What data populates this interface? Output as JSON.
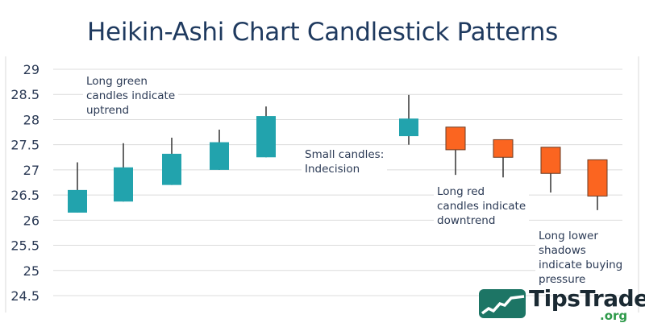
{
  "chart_data": {
    "type": "candlestick",
    "title": "Heikin-Ashi Chart Candlestick Patterns",
    "xlabel": "",
    "ylabel": "",
    "ylim": [
      24.5,
      29
    ],
    "yticks": [
      "29",
      "28.5",
      "28",
      "27.5",
      "27",
      "26.5",
      "26",
      "25.5",
      "25",
      "24.5"
    ],
    "grid": true,
    "candles": [
      {
        "open": 26.15,
        "close": 26.6,
        "high": 27.15,
        "low": 26.15,
        "color": "green"
      },
      {
        "open": 26.37,
        "close": 27.05,
        "high": 27.53,
        "low": 26.37,
        "color": "green"
      },
      {
        "open": 26.7,
        "close": 27.32,
        "high": 27.64,
        "low": 26.7,
        "color": "green"
      },
      {
        "open": 27.0,
        "close": 27.55,
        "high": 27.8,
        "low": 27.0,
        "color": "green"
      },
      {
        "open": 27.25,
        "close": 28.07,
        "high": 28.26,
        "low": 27.25,
        "color": "green"
      },
      {
        "open": 27.67,
        "close": 28.02,
        "high": 28.49,
        "low": 27.5,
        "color": "green"
      },
      {
        "open": 27.85,
        "close": 27.4,
        "high": 27.85,
        "low": 26.9,
        "color": "red"
      },
      {
        "open": 27.6,
        "close": 27.25,
        "high": 27.6,
        "low": 26.85,
        "color": "red"
      },
      {
        "open": 27.45,
        "close": 26.93,
        "high": 27.45,
        "low": 26.55,
        "color": "red"
      },
      {
        "open": 27.2,
        "close": 26.48,
        "high": 27.2,
        "low": 26.2,
        "color": "red"
      }
    ],
    "annotations": [
      "Long green candles indicate uptrend",
      "Small candles: Indecision",
      "Long red candles indicate downtrend",
      "Long lower shadows indicate buying pressure"
    ],
    "colors": {
      "green": "#22a3ad",
      "red": "#fb6520",
      "wick": "#333333",
      "grid": "#dcdcdc",
      "axis_text": "#2b3a55"
    }
  },
  "annotations": {
    "uptrend": [
      "Long green",
      "candles indicate",
      "uptrend"
    ],
    "indecision": [
      "Small candles:",
      "Indecision"
    ],
    "downtrend": [
      "Long red",
      "candles indicate",
      "downtrend"
    ],
    "buying": [
      "Long lower",
      "shadows",
      "indicate buying",
      "pressure"
    ]
  },
  "logo": {
    "name": "TipsTrade",
    "suffix": ".org"
  }
}
